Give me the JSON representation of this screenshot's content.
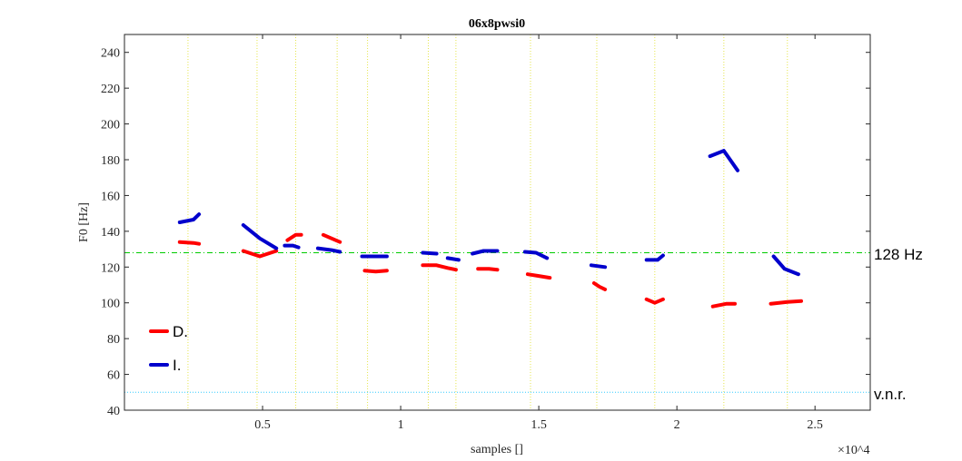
{
  "chart_data": {
    "type": "line",
    "title": "06x8pwsi0",
    "xlabel": "samples []",
    "ylabel": "F0 [Hz]",
    "x_exponent_label": "×10^4",
    "xlim": [
      0,
      27000
    ],
    "ylim": [
      40,
      250
    ],
    "xticks": [
      5000,
      10000,
      15000,
      20000,
      25000
    ],
    "xtick_labels": [
      "0.5",
      "1",
      "1.5",
      "2",
      "2.5"
    ],
    "yticks": [
      40,
      60,
      80,
      100,
      120,
      140,
      160,
      180,
      200,
      220,
      240
    ],
    "ytick_labels": [
      "40",
      "60",
      "80",
      "100",
      "120",
      "140",
      "160",
      "180",
      "200",
      "220",
      "240"
    ],
    "grid": false,
    "legend_position": "left",
    "reference_lines": [
      {
        "label": "128 Hz",
        "y": 128,
        "color": "#00cc00",
        "style": "dashdot"
      },
      {
        "label": "v.n.r.",
        "y": 50,
        "color": "#33ccff",
        "style": "dotted"
      }
    ],
    "vertical_markers": {
      "color": "#e6e64d",
      "x": [
        2300,
        4800,
        6200,
        7700,
        8800,
        11000,
        12000,
        14700,
        17100,
        19200,
        21700,
        24000
      ]
    },
    "series": [
      {
        "name": "D.",
        "color": "#ff0000",
        "segments": [
          [
            [
              2000,
              134
            ],
            [
              2500,
              133.5
            ],
            [
              2700,
              133
            ]
          ],
          [
            [
              4300,
              129
            ],
            [
              4900,
              126
            ],
            [
              5500,
              129
            ]
          ],
          [
            [
              5900,
              135
            ],
            [
              6200,
              138
            ],
            [
              6400,
              138
            ]
          ],
          [
            [
              7200,
              138
            ],
            [
              7800,
              134
            ]
          ],
          [
            [
              8700,
              118
            ],
            [
              9100,
              117.5
            ],
            [
              9500,
              118
            ]
          ],
          [
            [
              10800,
              121
            ],
            [
              11300,
              121
            ],
            [
              11700,
              119.5
            ],
            [
              12000,
              118.5
            ]
          ],
          [
            [
              12800,
              119
            ],
            [
              13200,
              119
            ],
            [
              13500,
              118.5
            ]
          ],
          [
            [
              14600,
              116
            ],
            [
              15000,
              115
            ],
            [
              15400,
              114
            ]
          ],
          [
            [
              17000,
              111
            ],
            [
              17200,
              109
            ],
            [
              17400,
              107.5
            ]
          ],
          [
            [
              18900,
              102
            ],
            [
              19200,
              100
            ],
            [
              19500,
              102
            ]
          ],
          [
            [
              21300,
              98
            ],
            [
              21800,
              99.5
            ],
            [
              22100,
              99.5
            ]
          ],
          [
            [
              23400,
              99.5
            ],
            [
              24000,
              100.5
            ],
            [
              24500,
              101
            ]
          ]
        ]
      },
      {
        "name": "I.",
        "color": "#0000cc",
        "segments": [
          [
            [
              2000,
              145
            ],
            [
              2500,
              146.5
            ],
            [
              2700,
              149.5
            ]
          ],
          [
            [
              4300,
              143.5
            ],
            [
              4900,
              136
            ],
            [
              5500,
              130.5
            ]
          ],
          [
            [
              5800,
              132
            ],
            [
              6100,
              132
            ],
            [
              6300,
              131
            ]
          ],
          [
            [
              7000,
              130.5
            ],
            [
              7500,
              129.5
            ],
            [
              7800,
              128.5
            ]
          ],
          [
            [
              8600,
              126
            ],
            [
              9500,
              126
            ]
          ],
          [
            [
              10800,
              128
            ],
            [
              11300,
              127.5
            ]
          ],
          [
            [
              11700,
              125
            ],
            [
              12100,
              124
            ]
          ],
          [
            [
              12600,
              127.5
            ],
            [
              13000,
              129
            ],
            [
              13500,
              129
            ]
          ],
          [
            [
              14500,
              128.5
            ],
            [
              14900,
              128
            ],
            [
              15300,
              125
            ]
          ],
          [
            [
              16900,
              121
            ],
            [
              17400,
              120
            ]
          ],
          [
            [
              18900,
              124
            ],
            [
              19300,
              124
            ],
            [
              19500,
              126.5
            ]
          ],
          [
            [
              21200,
              182
            ],
            [
              21700,
              185
            ],
            [
              22200,
              174
            ]
          ],
          [
            [
              23500,
              126
            ],
            [
              23900,
              119
            ],
            [
              24400,
              116
            ]
          ]
        ]
      }
    ]
  }
}
